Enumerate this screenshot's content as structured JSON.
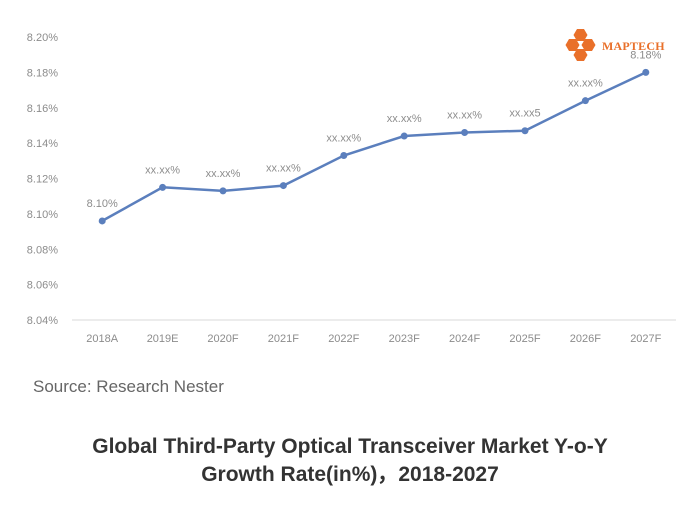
{
  "chart_data": {
    "type": "line",
    "title": "Global Third-Party Optical Transceiver Market Y-o-Y Growth Rate(in%)，2018-2027",
    "categories": [
      "2018A",
      "2019E",
      "2020F",
      "2021F",
      "2022F",
      "2023F",
      "2024F",
      "2025F",
      "2026F",
      "2027F"
    ],
    "series": [
      {
        "values": [
          8.096,
          8.115,
          8.113,
          8.116,
          8.133,
          8.144,
          8.146,
          8.147,
          8.164,
          8.18
        ],
        "color": "#5b7fbd"
      }
    ],
    "data_labels": [
      "8.10%",
      "xx.xx%",
      "xx.xx%",
      "xx.xx%",
      "xx.xx%",
      "xx.xx%",
      "xx.xx%",
      "xx.xx5",
      "xx.xx%",
      "8.18%"
    ],
    "ylim": [
      8.04,
      8.2
    ],
    "yticks": [
      "8.04%",
      "8.06%",
      "8.08%",
      "8.10%",
      "8.12%",
      "8.14%",
      "8.16%",
      "8.18%",
      "8.20%"
    ],
    "ytick_values": [
      8.04,
      8.06,
      8.08,
      8.1,
      8.12,
      8.14,
      8.16,
      8.18,
      8.2
    ],
    "grid": false
  },
  "source": "Source: Research Nester",
  "title_line1": "Global Third-Party Optical Transceiver Market Y-o-Y",
  "title_line2": "Growth Rate(in%)，2018-2027",
  "logo": {
    "text": "MAPTECH",
    "color": "#e9702a"
  }
}
